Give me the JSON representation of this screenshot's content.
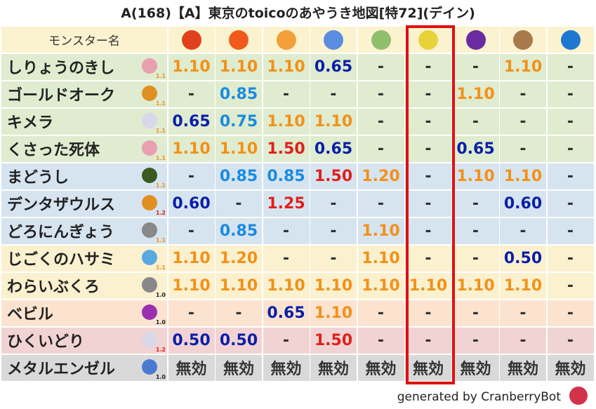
{
  "title": "A(168)【A】東京のtoicoのあやうき地図[特72](デイン)",
  "table": {
    "header": "モンスター名",
    "rows": [
      {
        "name": "しりょうのきし",
        "badge": "1.1",
        "bg": "#dfeccf",
        "values": [
          "1.10",
          "1.10",
          "1.10",
          "0.65",
          "-",
          "-",
          "-",
          "1.10",
          "-"
        ]
      },
      {
        "name": "ゴールドオーク",
        "badge": "1.1",
        "bg": "#dfeccf",
        "values": [
          "-",
          "0.85",
          "-",
          "-",
          "-",
          "-",
          "1.10",
          "-",
          "-"
        ]
      },
      {
        "name": "キメラ",
        "badge": "1.1",
        "bg": "#dfeccf",
        "values": [
          "0.65",
          "0.75",
          "1.10",
          "1.10",
          "-",
          "-",
          "-",
          "-",
          "-"
        ]
      },
      {
        "name": "くさった死体",
        "badge": "1.1",
        "bg": "#dfeccf",
        "values": [
          "1.10",
          "1.10",
          "1.50",
          "0.65",
          "-",
          "-",
          "0.65",
          "-",
          "-"
        ]
      },
      {
        "name": "まどうし",
        "badge": "1.1",
        "bg": "#d6e4f0",
        "values": [
          "-",
          "0.85",
          "0.85",
          "1.50",
          "1.20",
          "-",
          "1.10",
          "1.10",
          "-"
        ]
      },
      {
        "name": "デンタザウルス",
        "badge": "1.2",
        "bg": "#d6e4f0",
        "values": [
          "0.60",
          "-",
          "1.25",
          "-",
          "-",
          "-",
          "-",
          "0.60",
          "-"
        ]
      },
      {
        "name": "どろにんぎょう",
        "badge": "1.1",
        "bg": "#d6e4f0",
        "values": [
          "-",
          "0.85",
          "-",
          "-",
          "1.10",
          "-",
          "-",
          "-",
          "-"
        ]
      },
      {
        "name": "じごくのハサミ",
        "badge": "1.1",
        "bg": "#fbf1cf",
        "values": [
          "1.10",
          "1.20",
          "-",
          "-",
          "1.10",
          "-",
          "-",
          "0.50",
          "-"
        ]
      },
      {
        "name": "わらいぶくろ",
        "badge": "1.0",
        "bg": "#fbf1cf",
        "values": [
          "1.10",
          "1.10",
          "1.10",
          "1.10",
          "1.10",
          "1.10",
          "1.10",
          "1.10",
          "-"
        ]
      },
      {
        "name": "ベビル",
        "badge": "1.0",
        "bg": "#fbe3cf",
        "values": [
          "-",
          "-",
          "0.65",
          "1.10",
          "-",
          "-",
          "-",
          "-",
          "-"
        ]
      },
      {
        "name": "ひくいどり",
        "badge": "1.2",
        "bg": "#f2d3d3",
        "values": [
          "0.50",
          "0.50",
          "-",
          "1.50",
          "-",
          "-",
          "-",
          "-",
          "-"
        ]
      },
      {
        "name": "メタルエンゼル",
        "badge": "1.0",
        "bg": "#d9d9d9",
        "values": [
          "無効",
          "無効",
          "無効",
          "無効",
          "無効",
          "無効",
          "無効",
          "無効",
          "無効"
        ]
      }
    ]
  },
  "footer": "generated by CranberryBot"
}
